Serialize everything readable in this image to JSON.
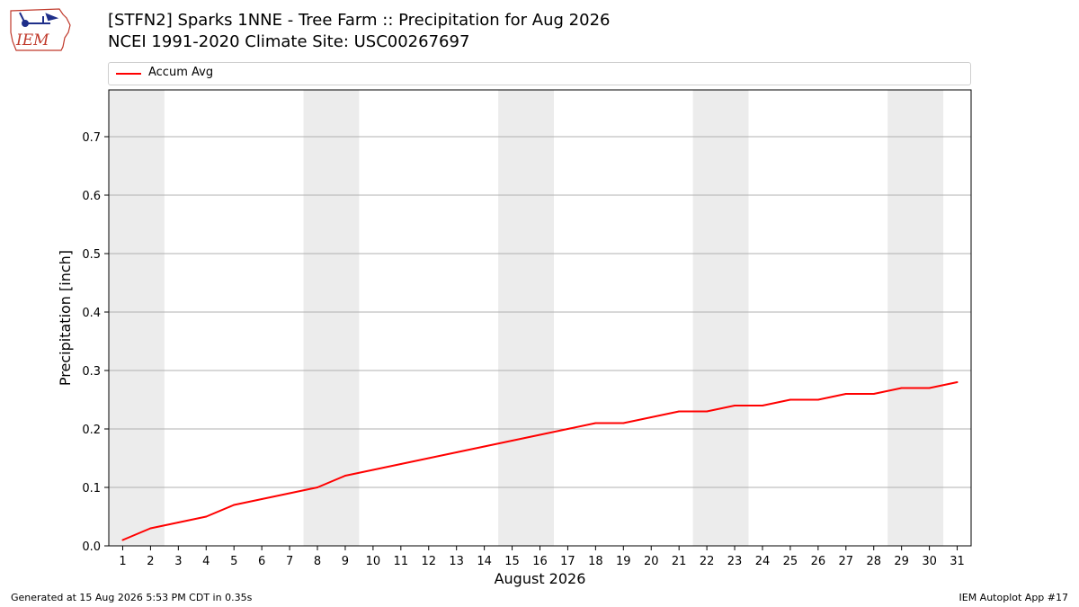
{
  "logo": {
    "text": "IEM",
    "icon": "iowa-weather-logo-icon"
  },
  "header": {
    "title": "[STFN2] Sparks 1NNE - Tree Farm :: Precipitation for Aug 2026",
    "subtitle": "NCEI 1991-2020 Climate Site: USC00267697"
  },
  "legend": {
    "entries": [
      "Accum Avg"
    ]
  },
  "chart_data": {
    "type": "line",
    "title": "[STFN2] Sparks 1NNE - Tree Farm :: Precipitation for Aug 2026",
    "subtitle": "NCEI 1991-2020 Climate Site: USC00267697",
    "xlabel": "August 2026",
    "ylabel": "Precipitation [inch]",
    "x": [
      1,
      2,
      3,
      4,
      5,
      6,
      7,
      8,
      9,
      10,
      11,
      12,
      13,
      14,
      15,
      16,
      17,
      18,
      19,
      20,
      21,
      22,
      23,
      24,
      25,
      26,
      27,
      28,
      29,
      30,
      31
    ],
    "xlim": [
      0.5,
      31.5
    ],
    "ylim": [
      0,
      0.78
    ],
    "yticks": [
      0.0,
      0.1,
      0.2,
      0.3,
      0.4,
      0.5,
      0.6,
      0.7
    ],
    "ytick_labels": [
      "0.0",
      "0.1",
      "0.2",
      "0.3",
      "0.4",
      "0.5",
      "0.6",
      "0.7"
    ],
    "xtick_labels": [
      "1",
      "2",
      "3",
      "4",
      "5",
      "6",
      "7",
      "8",
      "9",
      "10",
      "11",
      "12",
      "13",
      "14",
      "15",
      "16",
      "17",
      "18",
      "19",
      "20",
      "21",
      "22",
      "23",
      "24",
      "25",
      "26",
      "27",
      "28",
      "29",
      "30",
      "31"
    ],
    "grid": "horizontal",
    "legend_position": "top",
    "weekend_shading": [
      [
        1,
        2
      ],
      [
        8,
        9
      ],
      [
        15,
        16
      ],
      [
        22,
        23
      ],
      [
        29,
        30
      ]
    ],
    "shade_color": "#ececec",
    "series": [
      {
        "name": "Accum Avg",
        "color": "#ff0000",
        "values": [
          0.01,
          0.03,
          0.04,
          0.05,
          0.07,
          0.08,
          0.09,
          0.1,
          0.12,
          0.13,
          0.14,
          0.15,
          0.16,
          0.17,
          0.18,
          0.19,
          0.2,
          0.21,
          0.21,
          0.22,
          0.23,
          0.23,
          0.24,
          0.24,
          0.25,
          0.25,
          0.26,
          0.26,
          0.27,
          0.27,
          0.28
        ]
      }
    ]
  },
  "footer": {
    "generated": "Generated at 15 Aug 2026 5:53 PM CDT in 0.35s",
    "app": "IEM Autoplot App #17"
  }
}
